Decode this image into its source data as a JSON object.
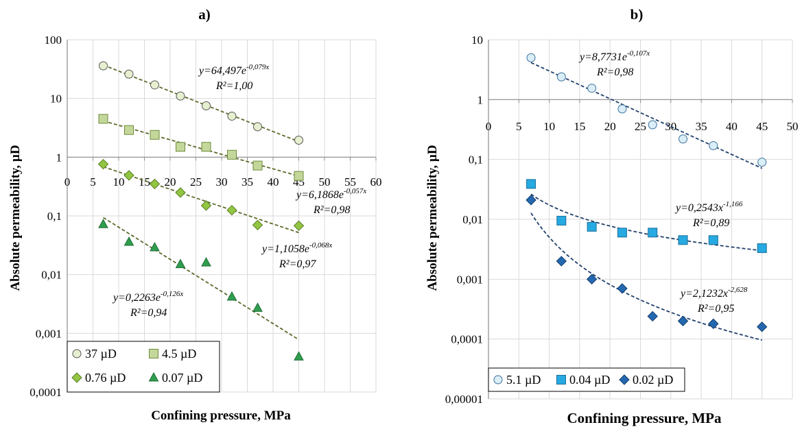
{
  "chart_data": [
    {
      "panel": "a)",
      "type": "scatter",
      "title": "a)",
      "xlabel": "Confining pressure, MPa",
      "ylabel": "Absolute permeability, µD",
      "y_scale": "log",
      "ylim": [
        0.0001,
        100
      ],
      "xlim": [
        0,
        60
      ],
      "x_ticks": [
        "0",
        "5",
        "10",
        "15",
        "20",
        "25",
        "30",
        "35",
        "40",
        "45",
        "50",
        "55",
        "60"
      ],
      "y_ticks": [
        "100",
        "10",
        "1",
        "0,1",
        "0,01",
        "0,001",
        "0,0001"
      ],
      "grid": true,
      "legend_position": "bottom-left",
      "series": [
        {
          "name": "37 µD",
          "marker": "circle",
          "color": "#e6efcf",
          "stroke": "#555555",
          "x": [
            7,
            12,
            17,
            22,
            27,
            32,
            37,
            45
          ],
          "y": [
            36,
            26,
            17,
            11,
            7.5,
            5.0,
            3.3,
            1.95
          ],
          "trend": {
            "type": "exp",
            "a": 64.497,
            "b": -0.079
          },
          "eq_main": "y=64,497e",
          "eq_exp": "-0,079x",
          "r2": "R²=1,00"
        },
        {
          "name": "4.5 µD",
          "marker": "square",
          "color": "#c4d79b",
          "stroke": "#6e8a3a",
          "x": [
            7,
            12,
            17,
            22,
            27,
            32,
            37,
            45
          ],
          "y": [
            4.5,
            2.9,
            2.4,
            1.5,
            1.5,
            1.1,
            0.72,
            0.48
          ],
          "trend": {
            "type": "exp",
            "a": 6.1868,
            "b": -0.057
          },
          "eq_main": "y=6,1868e",
          "eq_exp": "-0,057x",
          "r2": "R²=0,98"
        },
        {
          "name": "0.76 µD",
          "marker": "diamond",
          "color": "#92c542",
          "stroke": "#5b7e24",
          "x": [
            7,
            12,
            17,
            22,
            27,
            32,
            37,
            45
          ],
          "y": [
            0.76,
            0.49,
            0.35,
            0.25,
            0.15,
            0.125,
            0.07,
            0.068
          ],
          "trend": {
            "type": "exp",
            "a": 1.1058,
            "b": -0.068
          },
          "eq_main": "y=1,1058e",
          "eq_exp": "-0,068x",
          "r2": "R²=0,97"
        },
        {
          "name": "0.07 µD",
          "marker": "triangle",
          "color": "#2e9e4e",
          "stroke": "#1f6b34",
          "x": [
            7,
            12,
            17,
            22,
            27,
            32,
            37,
            45
          ],
          "y": [
            0.072,
            0.036,
            0.029,
            0.015,
            0.016,
            0.0042,
            0.0027,
            0.0004
          ],
          "trend": {
            "type": "exp",
            "a": 0.2263,
            "b": -0.126
          },
          "eq_main": "y=0,2263e",
          "eq_exp": "-0,126x",
          "r2": "R²=0,94"
        }
      ]
    },
    {
      "panel": "b)",
      "type": "scatter",
      "title": "b)",
      "xlabel": "Confining pressure, MPa",
      "ylabel": "Absolute permeability, µD",
      "y_scale": "log",
      "ylim": [
        1e-05,
        10
      ],
      "xlim": [
        0,
        50
      ],
      "x_ticks": [
        "0",
        "5",
        "10",
        "15",
        "20",
        "25",
        "30",
        "35",
        "40",
        "45",
        "50"
      ],
      "y_ticks": [
        "10",
        "1",
        "0,1",
        "0,01",
        "0,001",
        "0,0001",
        "0,00001"
      ],
      "grid": true,
      "legend_position": "bottom-left",
      "series": [
        {
          "name": "5.1 µD",
          "marker": "circle",
          "color": "#dbeef7",
          "stroke": "#3a6f9a",
          "x": [
            7,
            12,
            17,
            22,
            27,
            32,
            37,
            45
          ],
          "y": [
            5.0,
            2.4,
            1.55,
            0.7,
            0.38,
            0.22,
            0.17,
            0.09
          ],
          "trend": {
            "type": "exp",
            "a": 8.7731,
            "b": -0.107
          },
          "eq_main": "y=8,7731e",
          "eq_exp": "-0,107x",
          "r2": "R²=0,98"
        },
        {
          "name": "0.04 µD",
          "marker": "square",
          "color": "#27a9e1",
          "stroke": "#1a6f99",
          "x": [
            7,
            12,
            17,
            22,
            27,
            32,
            37,
            45
          ],
          "y": [
            0.039,
            0.0095,
            0.0075,
            0.006,
            0.006,
            0.0045,
            0.0045,
            0.0033
          ],
          "trend": {
            "type": "pow",
            "a": 0.2543,
            "b": -1.166
          },
          "eq_main": "y=0,2543x",
          "eq_exp": "-1,166",
          "r2": "R²=0,89"
        },
        {
          "name": "0.02 µD",
          "marker": "diamond",
          "color": "#2468b0",
          "stroke": "#153f6d",
          "x": [
            7,
            12,
            17,
            22,
            27,
            32,
            37,
            45
          ],
          "y": [
            0.021,
            0.002,
            0.001,
            0.0007,
            0.00024,
            0.0002,
            0.00018,
            0.00016
          ],
          "trend": {
            "type": "pow",
            "a": 2.1232,
            "b": -2.628
          },
          "eq_main": "y=2,1232x",
          "eq_exp": "-2,628",
          "r2": "R²=0,95"
        }
      ]
    }
  ]
}
